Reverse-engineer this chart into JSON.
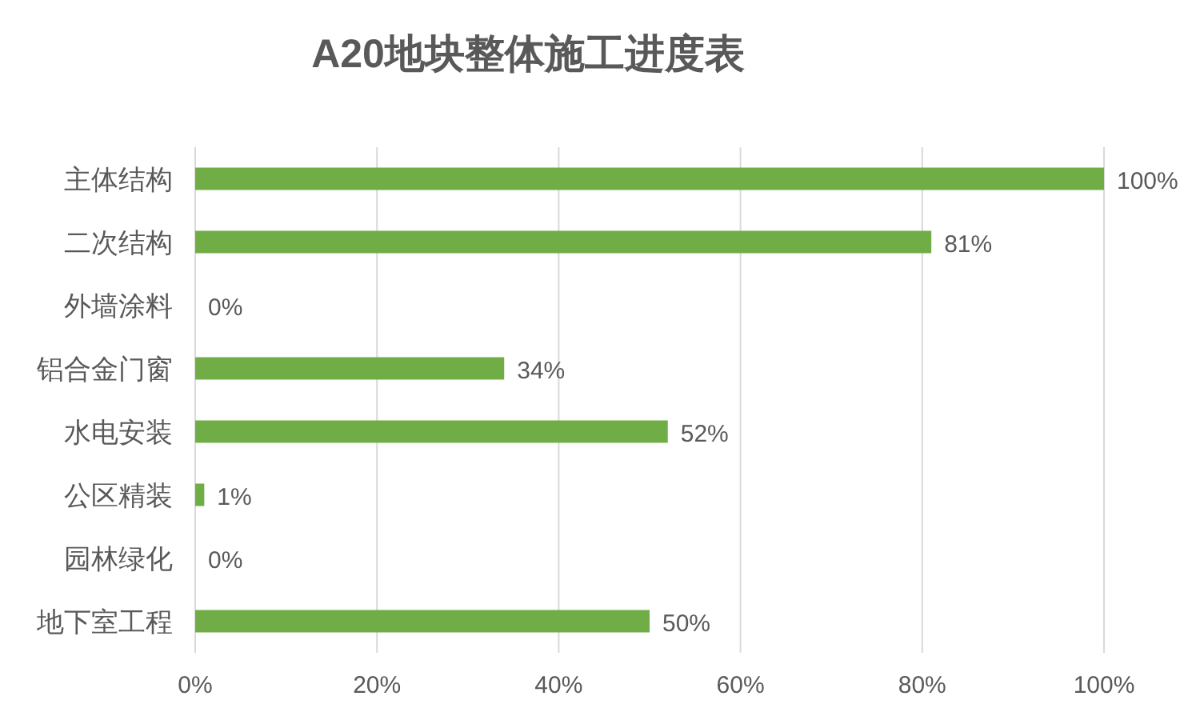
{
  "chart_data": {
    "type": "bar",
    "orientation": "horizontal",
    "title": "A20地块整体施工进度表",
    "categories": [
      "主体结构",
      "二次结构",
      "外墙涂料",
      "铝合金门窗",
      "水电安装",
      "公区精装",
      "园林绿化",
      "地下室工程"
    ],
    "values": [
      100,
      81,
      0,
      34,
      52,
      1,
      0,
      50
    ],
    "value_labels": [
      "100%",
      "81%",
      "0%",
      "34%",
      "52%",
      "1%",
      "0%",
      "50%"
    ],
    "color": "#70ad47",
    "xlim": [
      0,
      100
    ],
    "xticks": [
      {
        "value": 0,
        "label": "0%"
      },
      {
        "value": 20,
        "label": "20%"
      },
      {
        "value": 40,
        "label": "40%"
      },
      {
        "value": 60,
        "label": "60%"
      },
      {
        "value": 80,
        "label": "80%"
      },
      {
        "value": 100,
        "label": "100%"
      }
    ],
    "grid": "x"
  }
}
